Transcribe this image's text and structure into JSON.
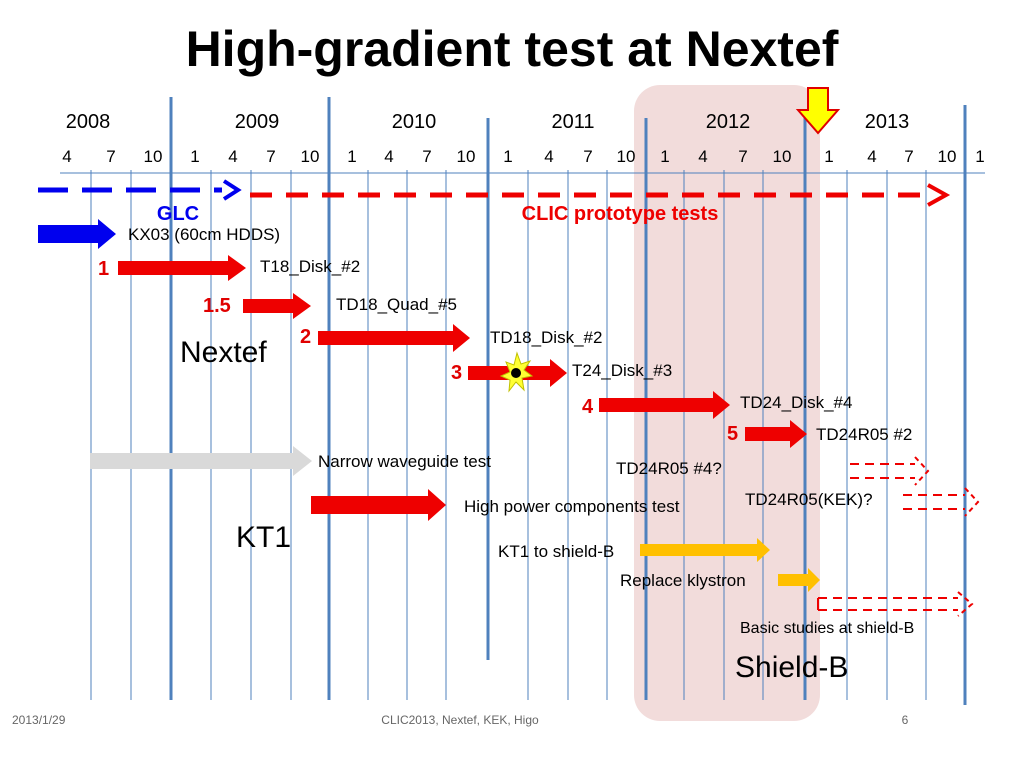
{
  "slide": {
    "title": "High-gradient test at Nextef",
    "footer_date": "2013/1/29",
    "footer_center": "CLIC2013, Nextef, KEK,  Higo",
    "page_number": "6"
  },
  "timeline": {
    "years": [
      "2008",
      "2009",
      "2010",
      "2011",
      "2012",
      "2013"
    ],
    "months": [
      "4",
      "7",
      "10",
      "1",
      "4",
      "7",
      "10",
      "1",
      "4",
      "7",
      "10",
      "1",
      "4",
      "7",
      "10",
      "1",
      "4",
      "7",
      "10",
      "1",
      "4",
      "7",
      "10",
      "1"
    ]
  },
  "phases": {
    "glc_label": "GLC",
    "clic_label": "CLIC prototype tests"
  },
  "groups": {
    "nextef": "Nextef",
    "kt1": "KT1",
    "shield_b": "Shield-B"
  },
  "tests": {
    "kx03": "KX03 (60cm HDDS)",
    "t18_disk_2": "T18_Disk_#2",
    "td18_quad_5": "TD18_Quad_#5",
    "td18_disk_2": "TD18_Disk_#2",
    "t24_disk_3": "T24_Disk_#3",
    "td24_disk_4": "TD24_Disk_#4",
    "td24r05_2": "TD24R05 #2",
    "td24r05_4": "TD24R05 #4?",
    "td24r05_kek": "TD24R05(KEK)?",
    "narrow_wg": "Narrow waveguide test",
    "high_power": "High power components test",
    "kt1_to_shield": "KT1 to shield-B",
    "replace_klystron": "Replace klystron",
    "basic_studies": "Basic studies at shield-B"
  },
  "step_numbers": {
    "s1": "1",
    "s1_5": "1.5",
    "s2": "2",
    "s3": "3",
    "s4": "4",
    "s5": "5"
  },
  "colors": {
    "red": "#ee0000",
    "blue": "#0000ee",
    "gold": "#ffc000",
    "gray": "#d9d9d9",
    "grid_blue": "#4f81bd",
    "shield_fill": "#f2dcdb",
    "now_marker": "#ffff00"
  }
}
